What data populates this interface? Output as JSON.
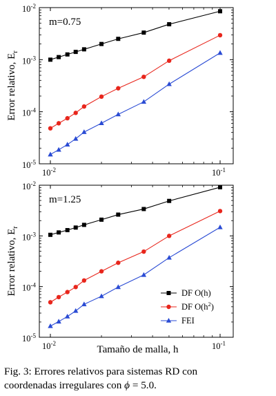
{
  "chart_data": [
    {
      "type": "line",
      "annotation": "m=0.75",
      "xlabel": "",
      "ylabel_main": "Error relativo, E",
      "ylabel_sub": "r",
      "xscale": "log",
      "yscale": "log",
      "xlim": [
        0.01,
        0.1
      ],
      "ylim": [
        1e-05,
        0.01
      ],
      "x": [
        0.01,
        0.0112,
        0.0126,
        0.0141,
        0.0158,
        0.02,
        0.0251,
        0.0355,
        0.0501,
        0.1
      ],
      "series": [
        {
          "name": "DF O(h)",
          "marker": "square",
          "color": "#000000",
          "values": [
            0.001,
            0.00112,
            0.00126,
            0.00141,
            0.00158,
            0.002,
            0.00251,
            0.00331,
            0.00479,
            0.00851
          ]
        },
        {
          "name": "DF O(h2)",
          "marker": "circle",
          "color": "#e8261c",
          "values": [
            4.8e-05,
            6e-05,
            7.5e-05,
            9.5e-05,
            0.000126,
            0.000195,
            0.000282,
            0.000468,
            0.000955,
            0.00295
          ]
        },
        {
          "name": "FEI",
          "marker": "triangle",
          "color": "#2a4bd4",
          "values": [
            1.51e-05,
            1.86e-05,
            2.34e-05,
            3.02e-05,
            4.07e-05,
            6.03e-05,
            8.9e-05,
            0.000155,
            0.000339,
            0.00135
          ]
        }
      ]
    },
    {
      "type": "line",
      "annotation": "m=1.25",
      "xlabel": "Tamaño de malla, h",
      "ylabel_main": "Error relativo, E",
      "ylabel_sub": "r",
      "xscale": "log",
      "yscale": "log",
      "xlim": [
        0.01,
        0.1
      ],
      "ylim": [
        1e-05,
        0.01
      ],
      "x": [
        0.01,
        0.0112,
        0.0126,
        0.0141,
        0.0158,
        0.02,
        0.0251,
        0.0355,
        0.0501,
        0.1
      ],
      "legend_position": "lower-right",
      "series": [
        {
          "name": "DF O(h)",
          "marker": "square",
          "color": "#000000",
          "values": [
            0.00105,
            0.00117,
            0.0013,
            0.00146,
            0.00165,
            0.00209,
            0.00263,
            0.00339,
            0.0049,
            0.00912
          ]
        },
        {
          "name": "DF O(h2)",
          "marker": "circle",
          "color": "#e8261c",
          "values": [
            4.9e-05,
            6.2e-05,
            7.8e-05,
            9.8e-05,
            0.000132,
            0.0002,
            0.000295,
            0.00049,
            0.001,
            0.00309
          ]
        },
        {
          "name": "FEI",
          "marker": "triangle",
          "color": "#2a4bd4",
          "values": [
            1.66e-05,
            2.04e-05,
            2.57e-05,
            3.31e-05,
            4.47e-05,
            6.46e-05,
            9.77e-05,
            0.00017,
            0.000372,
            0.00148
          ]
        }
      ]
    }
  ],
  "ticks": {
    "x": [
      {
        "base": "10",
        "exp": "-2"
      },
      {
        "base": "10",
        "exp": "-1"
      }
    ],
    "y": [
      {
        "base": "10",
        "exp": "-5"
      },
      {
        "base": "10",
        "exp": "-4"
      },
      {
        "base": "10",
        "exp": "-3"
      },
      {
        "base": "10",
        "exp": "-2"
      }
    ]
  },
  "legend": [
    {
      "label": "DF O(h)",
      "marker": "square",
      "color": "#000000"
    },
    {
      "label_main": "DF O(h",
      "label_sup": "2",
      "label_end": ")",
      "marker": "circle",
      "color": "#e8261c"
    },
    {
      "label": "FEI",
      "marker": "triangle",
      "color": "#2a4bd4"
    }
  ],
  "caption": {
    "line1": "Fig.   3:  Errores  relativos  para  sistemas  RD  con",
    "line2_start": "coordenadas irregulares con ",
    "line2_phi": "ϕ",
    "line2_end": " = 5.0."
  }
}
